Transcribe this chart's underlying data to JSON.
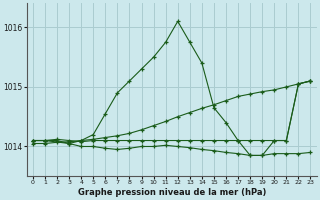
{
  "title": "Graphe pression niveau de la mer (hPa)",
  "background_color": "#cce8ec",
  "grid_color": "#aaccd0",
  "line_color": "#1a5c1a",
  "xlim": [
    -0.5,
    23.5
  ],
  "ylim": [
    1013.5,
    1016.4
  ],
  "yticks": [
    1014,
    1015,
    1016
  ],
  "xticks": [
    0,
    1,
    2,
    3,
    4,
    5,
    6,
    7,
    8,
    9,
    10,
    11,
    12,
    13,
    14,
    15,
    16,
    17,
    18,
    19,
    20,
    21,
    22,
    23
  ],
  "series": [
    {
      "x": [
        0,
        1,
        3,
        4,
        5,
        6,
        7,
        8,
        9,
        10,
        11,
        12,
        13,
        14,
        15,
        16,
        17,
        18,
        19,
        20,
        21,
        22,
        23
      ],
      "y": [
        1014.1,
        1014.1,
        1014.05,
        1014.1,
        1014.2,
        1014.55,
        1014.9,
        1015.1,
        1015.3,
        1015.5,
        1015.75,
        1016.1,
        1015.75,
        1015.4,
        1014.65,
        1014.4,
        1014.1,
        1013.85,
        1013.85,
        1014.1,
        1014.1,
        1015.05,
        1015.1
      ]
    },
    {
      "x": [
        0,
        1,
        2,
        3,
        4,
        5,
        6,
        7,
        8,
        9,
        10,
        11,
        12,
        13,
        14,
        15,
        16,
        17,
        18,
        19,
        20,
        21,
        22,
        23
      ],
      "y": [
        1014.05,
        1014.05,
        1014.07,
        1014.08,
        1014.1,
        1014.12,
        1014.15,
        1014.18,
        1014.22,
        1014.28,
        1014.35,
        1014.42,
        1014.5,
        1014.57,
        1014.64,
        1014.7,
        1014.77,
        1014.84,
        1014.88,
        1014.92,
        1014.95,
        1015.0,
        1015.05,
        1015.1
      ]
    },
    {
      "x": [
        0,
        1,
        2,
        3,
        4,
        5,
        6,
        7,
        8,
        9,
        10,
        11,
        12,
        13,
        14,
        15,
        16,
        17,
        18,
        19,
        20,
        21,
        22,
        23
      ],
      "y": [
        1014.1,
        1014.1,
        1014.1,
        1014.05,
        1014.0,
        1014.0,
        1013.97,
        1013.95,
        1013.97,
        1014.0,
        1014.0,
        1014.02,
        1014.0,
        1013.98,
        1013.95,
        1013.93,
        1013.9,
        1013.88,
        1013.85,
        1013.85,
        1013.88,
        1013.88,
        1013.88,
        1013.9
      ]
    },
    {
      "x": [
        0,
        1,
        2,
        3,
        4,
        5,
        6,
        7,
        8,
        9,
        10,
        11,
        12,
        13,
        14,
        15,
        16,
        17,
        18,
        19,
        20,
        21,
        22,
        23
      ],
      "y": [
        1014.1,
        1014.1,
        1014.12,
        1014.1,
        1014.08,
        1014.1,
        1014.1,
        1014.1,
        1014.1,
        1014.1,
        1014.1,
        1014.1,
        1014.1,
        1014.1,
        1014.1,
        1014.1,
        1014.1,
        1014.1,
        1014.1,
        1014.1,
        1014.1,
        1014.1,
        1015.05,
        1015.1
      ]
    }
  ]
}
